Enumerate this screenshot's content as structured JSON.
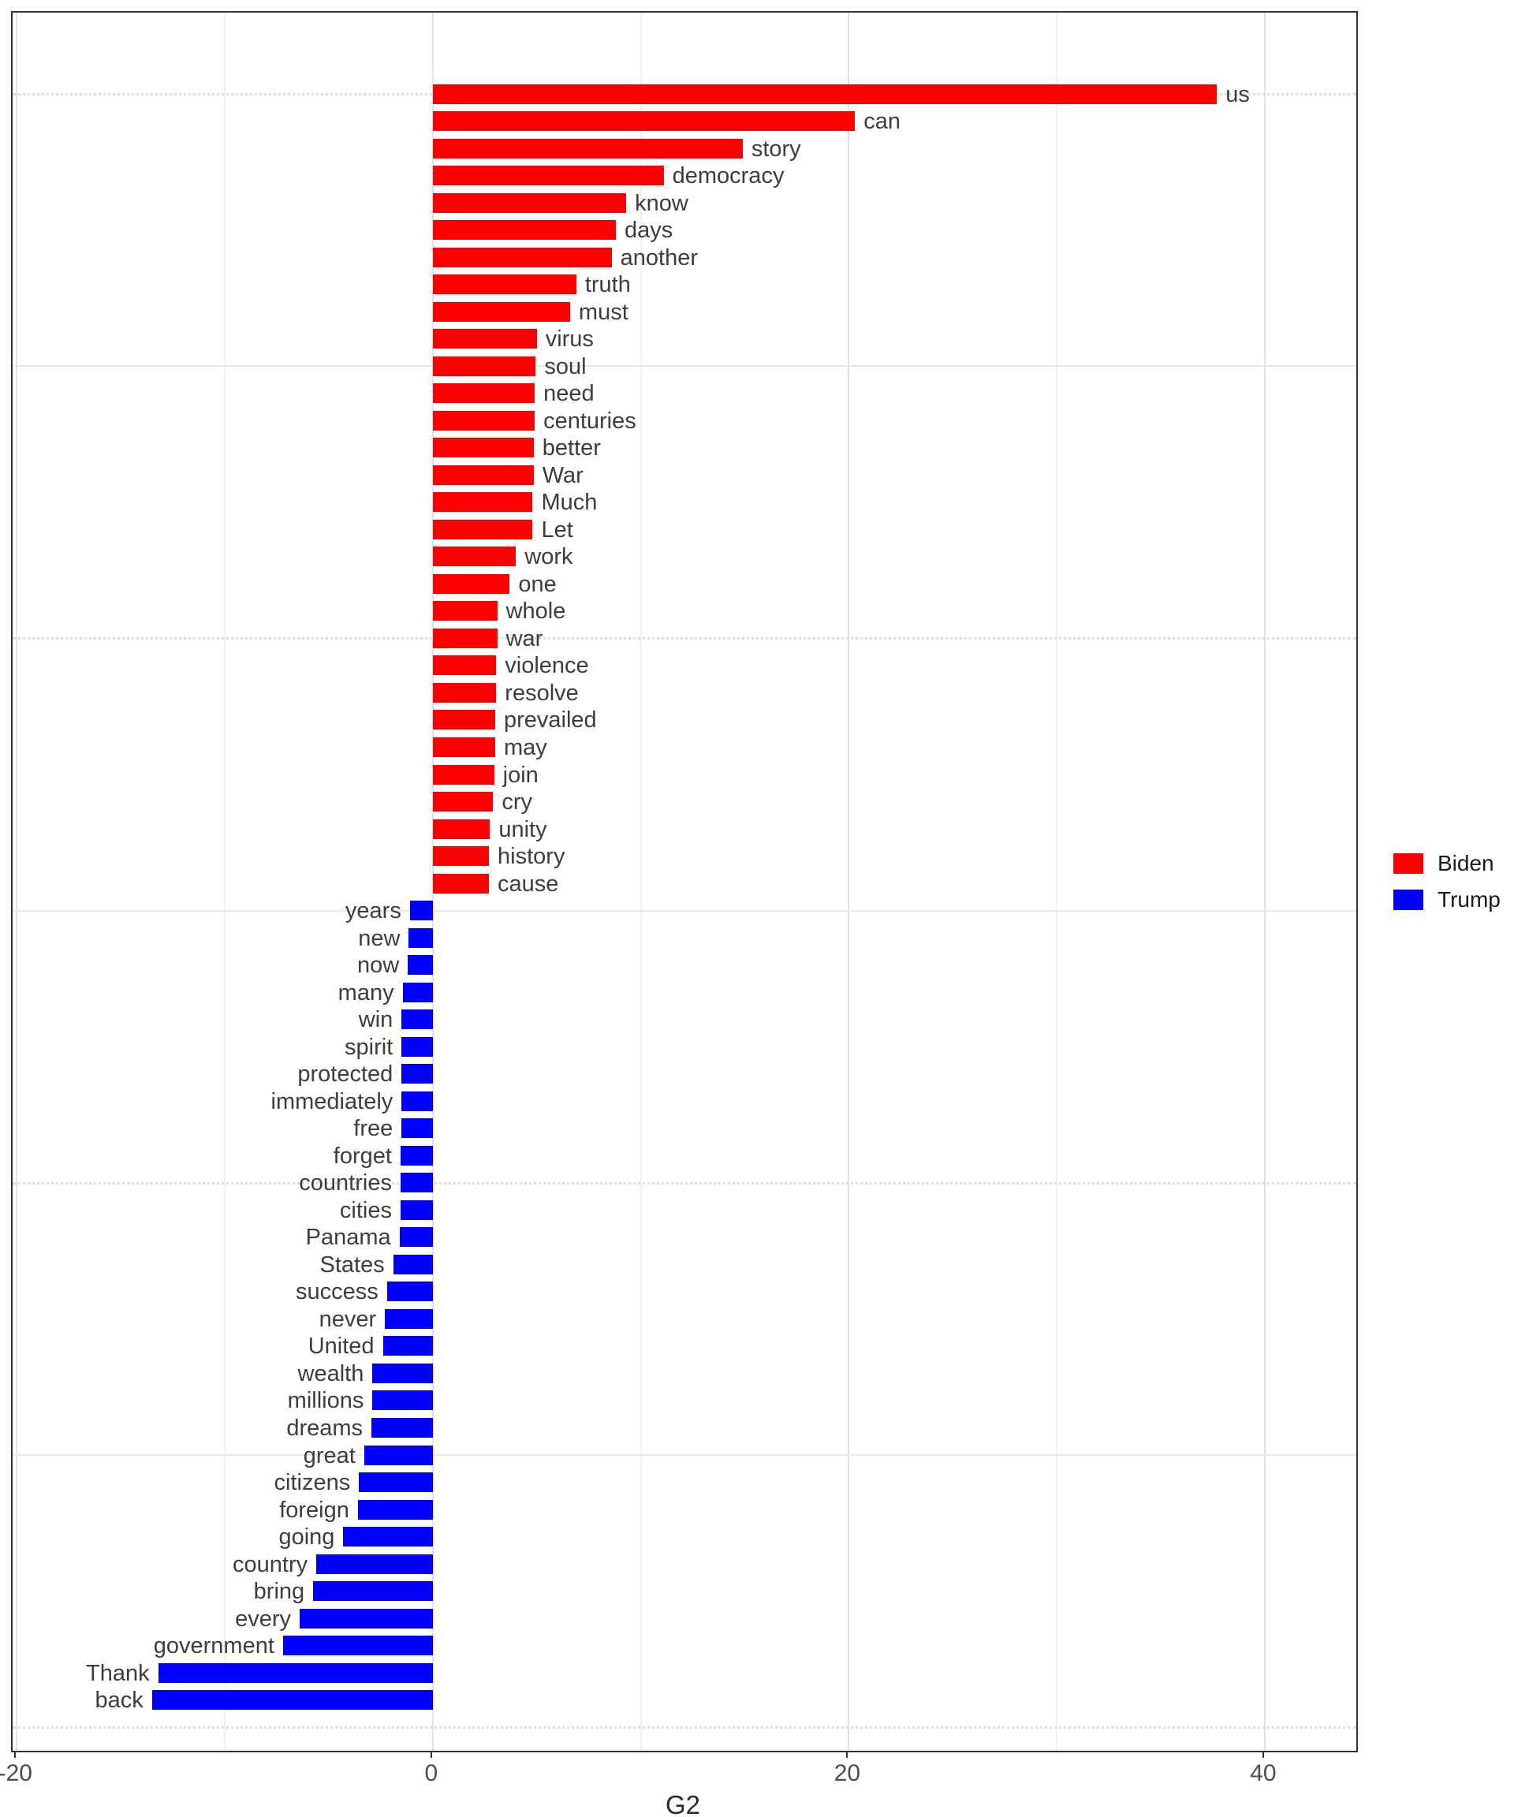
{
  "chart_data": {
    "type": "bar",
    "orientation": "horizontal",
    "title": "",
    "xlabel": "G2",
    "ylabel": "",
    "xlim": [
      -20.2,
      44.4
    ],
    "x_major_ticks": [
      -20,
      0,
      20,
      40
    ],
    "x_minor_gridlines": [
      -10,
      10,
      30
    ],
    "grid": {
      "h_solid_row_indices": [
        10,
        30,
        50
      ],
      "h_dotted_row_indices": [
        0,
        20,
        40,
        60
      ]
    },
    "legend": {
      "position": "right",
      "entries": [
        {
          "label": "Biden",
          "color": "#ff0000"
        },
        {
          "label": "Trump",
          "color": "#0000ff"
        }
      ]
    },
    "bars": [
      {
        "word": "us",
        "group": "Biden",
        "value": 37.7
      },
      {
        "word": "can",
        "group": "Biden",
        "value": 20.3
      },
      {
        "word": "story",
        "group": "Biden",
        "value": 14.9
      },
      {
        "word": "democracy",
        "group": "Biden",
        "value": 11.1
      },
      {
        "word": "know",
        "group": "Biden",
        "value": 9.3
      },
      {
        "word": "days",
        "group": "Biden",
        "value": 8.8
      },
      {
        "word": "another",
        "group": "Biden",
        "value": 8.6
      },
      {
        "word": "truth",
        "group": "Biden",
        "value": 6.9
      },
      {
        "word": "must",
        "group": "Biden",
        "value": 6.6
      },
      {
        "word": "virus",
        "group": "Biden",
        "value": 5.0
      },
      {
        "word": "soul",
        "group": "Biden",
        "value": 4.95
      },
      {
        "word": "need",
        "group": "Biden",
        "value": 4.9
      },
      {
        "word": "centuries",
        "group": "Biden",
        "value": 4.9
      },
      {
        "word": "better",
        "group": "Biden",
        "value": 4.85
      },
      {
        "word": "War",
        "group": "Biden",
        "value": 4.85
      },
      {
        "word": "Much",
        "group": "Biden",
        "value": 4.8
      },
      {
        "word": "Let",
        "group": "Biden",
        "value": 4.8
      },
      {
        "word": "work",
        "group": "Biden",
        "value": 4.0
      },
      {
        "word": "one",
        "group": "Biden",
        "value": 3.7
      },
      {
        "word": "whole",
        "group": "Biden",
        "value": 3.1
      },
      {
        "word": "war",
        "group": "Biden",
        "value": 3.1
      },
      {
        "word": "violence",
        "group": "Biden",
        "value": 3.05
      },
      {
        "word": "resolve",
        "group": "Biden",
        "value": 3.05
      },
      {
        "word": "prevailed",
        "group": "Biden",
        "value": 3.0
      },
      {
        "word": "may",
        "group": "Biden",
        "value": 3.0
      },
      {
        "word": "join",
        "group": "Biden",
        "value": 2.95
      },
      {
        "word": "cry",
        "group": "Biden",
        "value": 2.9
      },
      {
        "word": "unity",
        "group": "Biden",
        "value": 2.75
      },
      {
        "word": "history",
        "group": "Biden",
        "value": 2.7
      },
      {
        "word": "cause",
        "group": "Biden",
        "value": 2.7
      },
      {
        "word": "years",
        "group": "Trump",
        "value": -1.1
      },
      {
        "word": "new",
        "group": "Trump",
        "value": -1.15
      },
      {
        "word": "now",
        "group": "Trump",
        "value": -1.2
      },
      {
        "word": "many",
        "group": "Trump",
        "value": -1.45
      },
      {
        "word": "win",
        "group": "Trump",
        "value": -1.5
      },
      {
        "word": "spirit",
        "group": "Trump",
        "value": -1.5
      },
      {
        "word": "protected",
        "group": "Trump",
        "value": -1.5
      },
      {
        "word": "immediately",
        "group": "Trump",
        "value": -1.5
      },
      {
        "word": "free",
        "group": "Trump",
        "value": -1.5
      },
      {
        "word": "forget",
        "group": "Trump",
        "value": -1.55
      },
      {
        "word": "countries",
        "group": "Trump",
        "value": -1.55
      },
      {
        "word": "cities",
        "group": "Trump",
        "value": -1.55
      },
      {
        "word": "Panama",
        "group": "Trump",
        "value": -1.6
      },
      {
        "word": "States",
        "group": "Trump",
        "value": -1.9
      },
      {
        "word": "success",
        "group": "Trump",
        "value": -2.2
      },
      {
        "word": "never",
        "group": "Trump",
        "value": -2.3
      },
      {
        "word": "United",
        "group": "Trump",
        "value": -2.4
      },
      {
        "word": "wealth",
        "group": "Trump",
        "value": -2.9
      },
      {
        "word": "millions",
        "group": "Trump",
        "value": -2.9
      },
      {
        "word": "dreams",
        "group": "Trump",
        "value": -2.95
      },
      {
        "word": "great",
        "group": "Trump",
        "value": -3.3
      },
      {
        "word": "citizens",
        "group": "Trump",
        "value": -3.55
      },
      {
        "word": "foreign",
        "group": "Trump",
        "value": -3.6
      },
      {
        "word": "going",
        "group": "Trump",
        "value": -4.3
      },
      {
        "word": "country",
        "group": "Trump",
        "value": -5.6
      },
      {
        "word": "bring",
        "group": "Trump",
        "value": -5.75
      },
      {
        "word": "every",
        "group": "Trump",
        "value": -6.4
      },
      {
        "word": "government",
        "group": "Trump",
        "value": -7.2
      },
      {
        "word": "Thank",
        "group": "Trump",
        "value": -13.2
      },
      {
        "word": "back",
        "group": "Trump",
        "value": -13.5
      }
    ]
  },
  "colors": {
    "biden": "#ff0000",
    "trump": "#0000ff",
    "bar_label": "#3d3d3d",
    "axis_text": "#4d4d4d",
    "panel_border": "#333333"
  }
}
